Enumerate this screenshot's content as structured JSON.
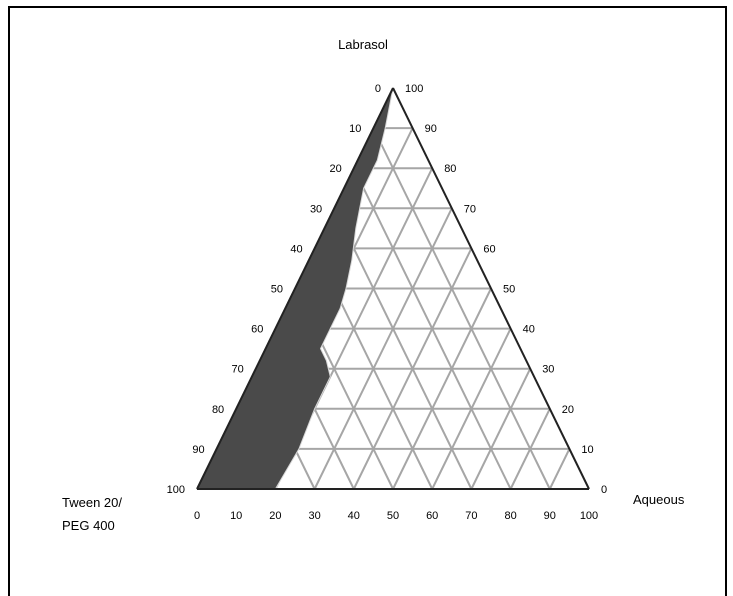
{
  "chart_data": {
    "type": "ternary",
    "title": "",
    "axes": {
      "top": "Labrasol",
      "left": [
        "Tween 20/",
        "PEG 400"
      ],
      "right": "Aqueous"
    },
    "ticks": {
      "bottom": [
        "0",
        "10",
        "20",
        "30",
        "40",
        "50",
        "60",
        "70",
        "80",
        "90",
        "100"
      ],
      "left": [
        "0",
        "10",
        "20",
        "30",
        "40",
        "50",
        "60",
        "70",
        "80",
        "90",
        "100"
      ],
      "right": [
        "100",
        "90",
        "80",
        "70",
        "60",
        "50",
        "40",
        "30",
        "20",
        "10",
        "0"
      ]
    },
    "grid_step": 10,
    "region": {
      "name": "",
      "fill": "#4a4a4a",
      "boundary": [
        {
          "aqueous": 0,
          "labrasol": 100
        },
        {
          "aqueous": 3,
          "labrasol": 90
        },
        {
          "aqueous": 5,
          "labrasol": 82
        },
        {
          "aqueous": 5,
          "labrasol": 75
        },
        {
          "aqueous": 8,
          "labrasol": 65
        },
        {
          "aqueous": 11,
          "labrasol": 57
        },
        {
          "aqueous": 13,
          "labrasol": 50
        },
        {
          "aqueous": 14,
          "labrasol": 45
        },
        {
          "aqueous": 14,
          "labrasol": 35
        },
        {
          "aqueous": 17,
          "labrasol": 32
        },
        {
          "aqueous": 20,
          "labrasol": 28
        },
        {
          "aqueous": 20,
          "labrasol": 20
        },
        {
          "aqueous": 21,
          "labrasol": 10
        },
        {
          "aqueous": 20,
          "labrasol": 0
        },
        {
          "aqueous": 0,
          "labrasol": 0
        }
      ]
    },
    "colors": {
      "grid": "#a6a6a6",
      "edge": "#222222",
      "region": "#4a4a4a"
    }
  }
}
